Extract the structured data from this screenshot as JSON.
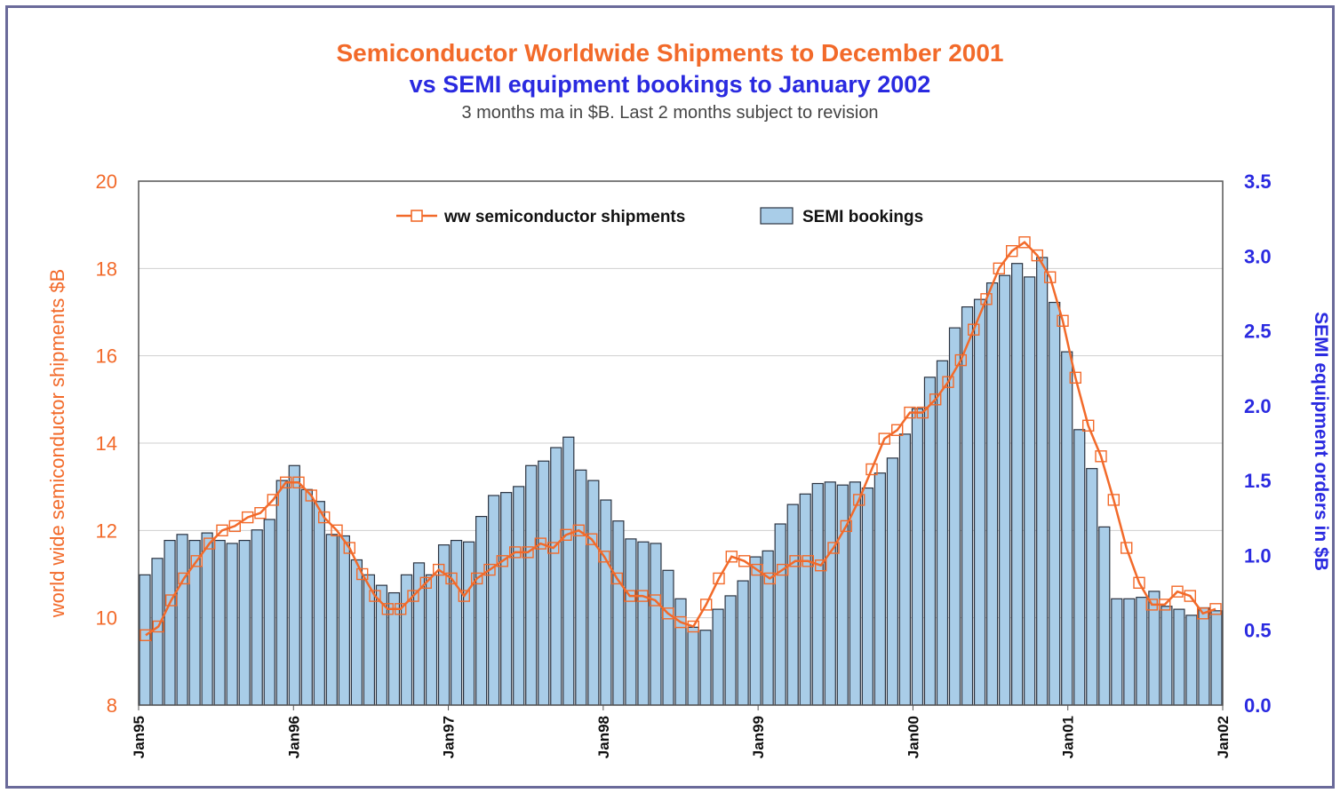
{
  "chart_data": {
    "type": "bar+line",
    "title": "Semiconductor  Worldwide Shipments to December 2001",
    "subtitle": "vs SEMI equipment bookings to January 2002",
    "note": "3 months ma in $B. Last 2 months subject to revision",
    "ylabel_left": "world wide semiconductor shipments $B",
    "ylabel_right": "SEMI equipment orders in $B",
    "ylim_left": [
      8,
      20
    ],
    "ylim_right": [
      0,
      3.5
    ],
    "yticks_left": [
      "8",
      "10",
      "12",
      "14",
      "16",
      "18",
      "20"
    ],
    "yticks_right": [
      "0.0",
      "0.5",
      "1.0",
      "1.5",
      "2.0",
      "2.5",
      "3.0",
      "3.5"
    ],
    "xticks": [
      "Jan95",
      "Jan96",
      "Jan97",
      "Jan98",
      "Jan99",
      "Jan00",
      "Jan01",
      "Jan02"
    ],
    "grid": true,
    "legend_position": "top-center",
    "colors": {
      "line": "#f26a2a",
      "bar_fill": "#a9cde8",
      "bar_stroke": "#2b3340",
      "right_axis": "#2a2ae0"
    },
    "series": [
      {
        "name": "ww semiconductor shipments",
        "type": "line",
        "axis": "left",
        "values": [
          9.6,
          9.8,
          10.4,
          10.9,
          11.3,
          11.7,
          12.0,
          12.1,
          12.3,
          12.4,
          12.7,
          13.1,
          13.1,
          12.8,
          12.3,
          12.0,
          11.6,
          11.0,
          10.5,
          10.2,
          10.2,
          10.5,
          10.8,
          11.1,
          10.9,
          10.5,
          10.9,
          11.1,
          11.3,
          11.5,
          11.5,
          11.7,
          11.6,
          11.9,
          12.0,
          11.8,
          11.4,
          10.9,
          10.5,
          10.5,
          10.4,
          10.1,
          9.9,
          9.8,
          10.3,
          10.9,
          11.4,
          11.3,
          11.1,
          10.9,
          11.1,
          11.3,
          11.3,
          11.2,
          11.6,
          12.1,
          12.7,
          13.4,
          14.1,
          14.3,
          14.7,
          14.7,
          15.0,
          15.4,
          15.9,
          16.6,
          17.3,
          18.0,
          18.4,
          18.6,
          18.3,
          17.8,
          16.8,
          15.5,
          14.4,
          13.7,
          12.7,
          11.6,
          10.8,
          10.3,
          10.3,
          10.6,
          10.5,
          10.1,
          10.2
        ]
      },
      {
        "name": "SEMI bookings",
        "type": "bar",
        "axis": "right",
        "values": [
          0.87,
          0.98,
          1.1,
          1.14,
          1.1,
          1.15,
          1.1,
          1.08,
          1.1,
          1.17,
          1.24,
          1.5,
          1.6,
          1.44,
          1.36,
          1.14,
          1.13,
          0.97,
          0.87,
          0.8,
          0.75,
          0.87,
          0.95,
          0.87,
          1.07,
          1.1,
          1.09,
          1.26,
          1.4,
          1.42,
          1.46,
          1.6,
          1.63,
          1.72,
          1.79,
          1.57,
          1.5,
          1.37,
          1.23,
          1.11,
          1.09,
          1.08,
          0.9,
          0.71,
          0.52,
          0.5,
          0.64,
          0.73,
          0.83,
          0.99,
          1.03,
          1.21,
          1.34,
          1.41,
          1.48,
          1.49,
          1.47,
          1.49,
          1.45,
          1.55,
          1.65,
          1.81,
          1.98,
          2.19,
          2.3,
          2.52,
          2.66,
          2.71,
          2.82,
          2.87,
          2.95,
          2.86,
          2.99,
          2.69,
          2.36,
          1.84,
          1.58,
          1.19,
          0.71,
          0.71,
          0.72,
          0.76,
          0.66,
          0.64,
          0.6,
          0.65,
          0.63
        ]
      }
    ]
  }
}
